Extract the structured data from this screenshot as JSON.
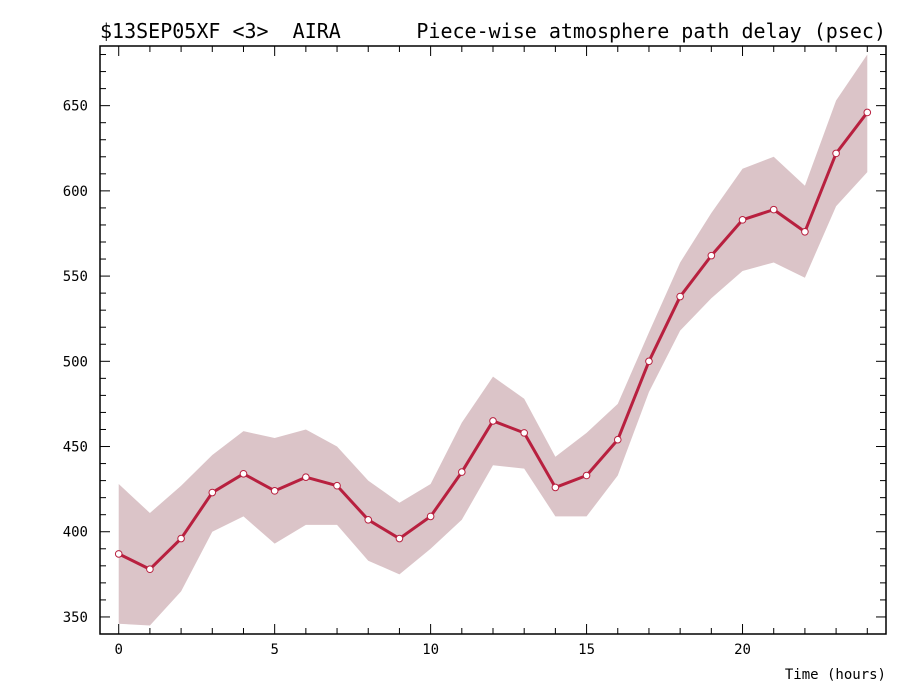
{
  "header": {
    "left_title": "$13SEP05XF <3>  AIRA",
    "right_title": "Piece-wise atmosphere path delay (psec)"
  },
  "chart_data": {
    "type": "line",
    "title": "Piece-wise atmosphere path delay (psec)",
    "xlabel": "Time (hours)",
    "ylabel": "",
    "xlim": [
      -0.6,
      24.6
    ],
    "ylim": [
      340,
      685
    ],
    "xticks": [
      0,
      5,
      10,
      15,
      20
    ],
    "yticks": [
      350,
      400,
      450,
      500,
      550,
      600,
      650
    ],
    "grid": false,
    "legend": "none",
    "x": [
      0,
      1,
      2,
      3,
      4,
      5,
      6,
      7,
      8,
      9,
      10,
      11,
      12,
      13,
      14,
      15,
      16,
      17,
      18,
      19,
      20,
      21,
      22,
      23,
      24
    ],
    "series": [
      {
        "values": [
          387,
          378,
          396,
          423,
          434,
          424,
          432,
          427,
          407,
          396,
          409,
          435,
          465,
          458,
          426,
          433,
          454,
          500,
          538,
          562,
          583,
          589,
          576,
          622,
          646
        ],
        "upper": [
          428,
          411,
          427,
          445,
          459,
          455,
          460,
          450,
          430,
          417,
          428,
          464,
          491,
          478,
          444,
          458,
          475,
          517,
          558,
          587,
          613,
          620,
          603,
          653,
          680
        ],
        "lower": [
          346,
          345,
          365,
          400,
          409,
          393,
          404,
          404,
          383,
          375,
          390,
          407,
          439,
          437,
          409,
          409,
          433,
          482,
          518,
          537,
          553,
          558,
          549,
          591,
          611
        ]
      }
    ],
    "colors": {
      "line": "#b8203f",
      "band": "#dbc4c8",
      "marker_fill": "#ffffff"
    }
  }
}
